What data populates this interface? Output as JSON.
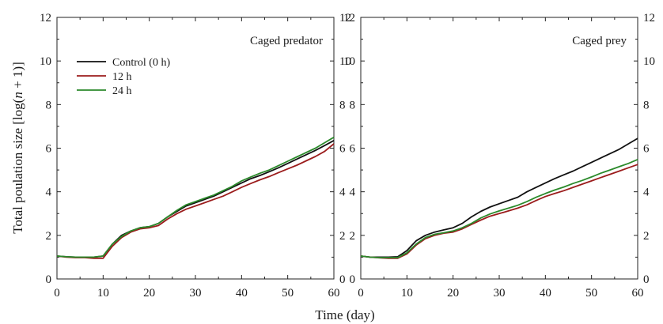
{
  "figure": {
    "ylabel_prefix": "Total poulation size [log(",
    "ylabel_n": "n",
    "ylabel_suffix": " + 1)]",
    "xlabel": "Time (day)"
  },
  "chart_data": [
    {
      "type": "line",
      "title": "Caged predator",
      "xlim": [
        0,
        60
      ],
      "ylim": [
        0,
        12
      ],
      "x_ticks": [
        0,
        10,
        20,
        30,
        40,
        50,
        60
      ],
      "y_ticks": [
        0,
        2,
        4,
        6,
        8,
        10,
        12
      ],
      "legend_placement": "upper-left",
      "grid": false,
      "series": [
        {
          "name": "Control (0 h)",
          "color": "#111111",
          "points": [
            [
              0,
              1.05
            ],
            [
              2,
              1.02
            ],
            [
              4,
              1.0
            ],
            [
              6,
              1.0
            ],
            [
              8,
              1.0
            ],
            [
              10,
              1.05
            ],
            [
              12,
              1.6
            ],
            [
              14,
              2.0
            ],
            [
              16,
              2.2
            ],
            [
              18,
              2.35
            ],
            [
              20,
              2.4
            ],
            [
              22,
              2.55
            ],
            [
              24,
              2.85
            ],
            [
              26,
              3.1
            ],
            [
              28,
              3.35
            ],
            [
              30,
              3.5
            ],
            [
              32,
              3.65
            ],
            [
              34,
              3.8
            ],
            [
              36,
              4.0
            ],
            [
              38,
              4.2
            ],
            [
              40,
              4.4
            ],
            [
              42,
              4.6
            ],
            [
              44,
              4.75
            ],
            [
              46,
              4.92
            ],
            [
              48,
              5.1
            ],
            [
              50,
              5.3
            ],
            [
              52,
              5.5
            ],
            [
              54,
              5.7
            ],
            [
              56,
              5.9
            ],
            [
              58,
              6.12
            ],
            [
              60,
              6.35
            ]
          ]
        },
        {
          "name": "12 h",
          "color": "#9b1c1c",
          "points": [
            [
              0,
              1.05
            ],
            [
              2,
              1.0
            ],
            [
              4,
              0.98
            ],
            [
              6,
              0.98
            ],
            [
              8,
              0.95
            ],
            [
              10,
              0.95
            ],
            [
              12,
              1.5
            ],
            [
              14,
              1.9
            ],
            [
              16,
              2.15
            ],
            [
              18,
              2.3
            ],
            [
              20,
              2.35
            ],
            [
              22,
              2.45
            ],
            [
              24,
              2.75
            ],
            [
              26,
              3.0
            ],
            [
              28,
              3.2
            ],
            [
              30,
              3.35
            ],
            [
              32,
              3.5
            ],
            [
              34,
              3.65
            ],
            [
              36,
              3.8
            ],
            [
              38,
              4.0
            ],
            [
              40,
              4.2
            ],
            [
              42,
              4.38
            ],
            [
              44,
              4.55
            ],
            [
              46,
              4.7
            ],
            [
              48,
              4.88
            ],
            [
              50,
              5.05
            ],
            [
              52,
              5.22
            ],
            [
              54,
              5.42
            ],
            [
              56,
              5.62
            ],
            [
              58,
              5.85
            ],
            [
              60,
              6.2
            ]
          ]
        },
        {
          "name": "24 h",
          "color": "#2b8a2b",
          "points": [
            [
              0,
              1.05
            ],
            [
              2,
              1.02
            ],
            [
              4,
              1.0
            ],
            [
              6,
              1.0
            ],
            [
              8,
              1.0
            ],
            [
              10,
              1.05
            ],
            [
              12,
              1.6
            ],
            [
              14,
              1.95
            ],
            [
              16,
              2.2
            ],
            [
              18,
              2.35
            ],
            [
              20,
              2.4
            ],
            [
              22,
              2.55
            ],
            [
              24,
              2.85
            ],
            [
              26,
              3.15
            ],
            [
              28,
              3.4
            ],
            [
              30,
              3.55
            ],
            [
              32,
              3.7
            ],
            [
              34,
              3.85
            ],
            [
              36,
              4.05
            ],
            [
              38,
              4.25
            ],
            [
              40,
              4.5
            ],
            [
              42,
              4.68
            ],
            [
              44,
              4.85
            ],
            [
              46,
              5.0
            ],
            [
              48,
              5.2
            ],
            [
              50,
              5.4
            ],
            [
              52,
              5.6
            ],
            [
              54,
              5.8
            ],
            [
              56,
              6.0
            ],
            [
              58,
              6.25
            ],
            [
              60,
              6.5
            ]
          ]
        }
      ]
    },
    {
      "type": "line",
      "title": "Caged prey",
      "xlim": [
        0,
        60
      ],
      "ylim": [
        0,
        12
      ],
      "x_ticks": [
        0,
        10,
        20,
        30,
        40,
        50,
        60
      ],
      "y_ticks": [
        0,
        2,
        4,
        6,
        8,
        10,
        12
      ],
      "grid": false,
      "series": [
        {
          "name": "Control (0 h)",
          "color": "#111111",
          "points": [
            [
              0,
              1.05
            ],
            [
              2,
              1.0
            ],
            [
              4,
              1.0
            ],
            [
              6,
              1.0
            ],
            [
              8,
              1.02
            ],
            [
              10,
              1.3
            ],
            [
              12,
              1.75
            ],
            [
              14,
              2.0
            ],
            [
              16,
              2.15
            ],
            [
              18,
              2.25
            ],
            [
              20,
              2.35
            ],
            [
              22,
              2.55
            ],
            [
              24,
              2.85
            ],
            [
              26,
              3.1
            ],
            [
              28,
              3.3
            ],
            [
              30,
              3.45
            ],
            [
              32,
              3.6
            ],
            [
              34,
              3.75
            ],
            [
              36,
              4.0
            ],
            [
              38,
              4.2
            ],
            [
              40,
              4.4
            ],
            [
              42,
              4.6
            ],
            [
              44,
              4.78
            ],
            [
              46,
              4.95
            ],
            [
              48,
              5.15
            ],
            [
              50,
              5.35
            ],
            [
              52,
              5.55
            ],
            [
              54,
              5.75
            ],
            [
              56,
              5.95
            ],
            [
              58,
              6.2
            ],
            [
              60,
              6.45
            ]
          ]
        },
        {
          "name": "12 h",
          "color": "#9b1c1c",
          "points": [
            [
              0,
              1.05
            ],
            [
              2,
              1.0
            ],
            [
              4,
              0.97
            ],
            [
              6,
              0.95
            ],
            [
              8,
              0.95
            ],
            [
              10,
              1.15
            ],
            [
              12,
              1.55
            ],
            [
              14,
              1.85
            ],
            [
              16,
              2.0
            ],
            [
              18,
              2.1
            ],
            [
              20,
              2.15
            ],
            [
              22,
              2.3
            ],
            [
              24,
              2.5
            ],
            [
              26,
              2.7
            ],
            [
              28,
              2.88
            ],
            [
              30,
              3.0
            ],
            [
              32,
              3.12
            ],
            [
              34,
              3.25
            ],
            [
              36,
              3.4
            ],
            [
              38,
              3.6
            ],
            [
              40,
              3.78
            ],
            [
              42,
              3.92
            ],
            [
              44,
              4.05
            ],
            [
              46,
              4.2
            ],
            [
              48,
              4.35
            ],
            [
              50,
              4.5
            ],
            [
              52,
              4.65
            ],
            [
              54,
              4.8
            ],
            [
              56,
              4.95
            ],
            [
              58,
              5.1
            ],
            [
              60,
              5.25
            ]
          ]
        },
        {
          "name": "24 h",
          "color": "#2b8a2b",
          "points": [
            [
              0,
              1.05
            ],
            [
              2,
              1.0
            ],
            [
              4,
              0.98
            ],
            [
              6,
              0.98
            ],
            [
              8,
              0.98
            ],
            [
              10,
              1.2
            ],
            [
              12,
              1.6
            ],
            [
              14,
              1.9
            ],
            [
              16,
              2.05
            ],
            [
              18,
              2.12
            ],
            [
              20,
              2.2
            ],
            [
              22,
              2.35
            ],
            [
              24,
              2.55
            ],
            [
              26,
              2.8
            ],
            [
              28,
              2.98
            ],
            [
              30,
              3.12
            ],
            [
              32,
              3.25
            ],
            [
              34,
              3.38
            ],
            [
              36,
              3.55
            ],
            [
              38,
              3.75
            ],
            [
              40,
              3.92
            ],
            [
              42,
              4.08
            ],
            [
              44,
              4.22
            ],
            [
              46,
              4.38
            ],
            [
              48,
              4.52
            ],
            [
              50,
              4.68
            ],
            [
              52,
              4.85
            ],
            [
              54,
              5.0
            ],
            [
              56,
              5.15
            ],
            [
              58,
              5.3
            ],
            [
              60,
              5.48
            ]
          ]
        }
      ]
    }
  ]
}
